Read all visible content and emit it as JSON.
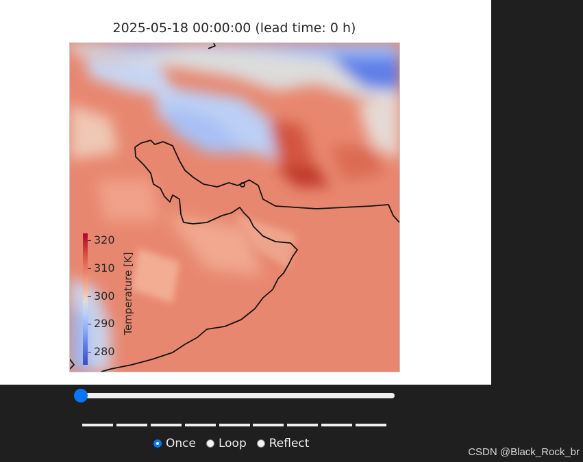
{
  "figure": {
    "title": "2025-05-18 00:00:00 (lead time: 0 h)",
    "colorbar": {
      "label": "Temperature [K]",
      "ticks": [
        "320",
        "310",
        "300",
        "290",
        "280"
      ],
      "tick_values": [
        320,
        310,
        300,
        290,
        280
      ],
      "range": [
        277,
        323
      ],
      "colormap": "coolwarm"
    }
  },
  "player": {
    "slider_value": 0,
    "button_count": 9,
    "modes": [
      {
        "label": "Once",
        "checked": true
      },
      {
        "label": "Loop",
        "checked": false
      },
      {
        "label": "Reflect",
        "checked": false
      }
    ]
  },
  "watermark": "CSDN @Black_Rock_br",
  "colors": {
    "accent": "#0b76f5",
    "background": "#1f1f1f",
    "land_warm": "#e8836c",
    "sea": "#e67f66"
  }
}
